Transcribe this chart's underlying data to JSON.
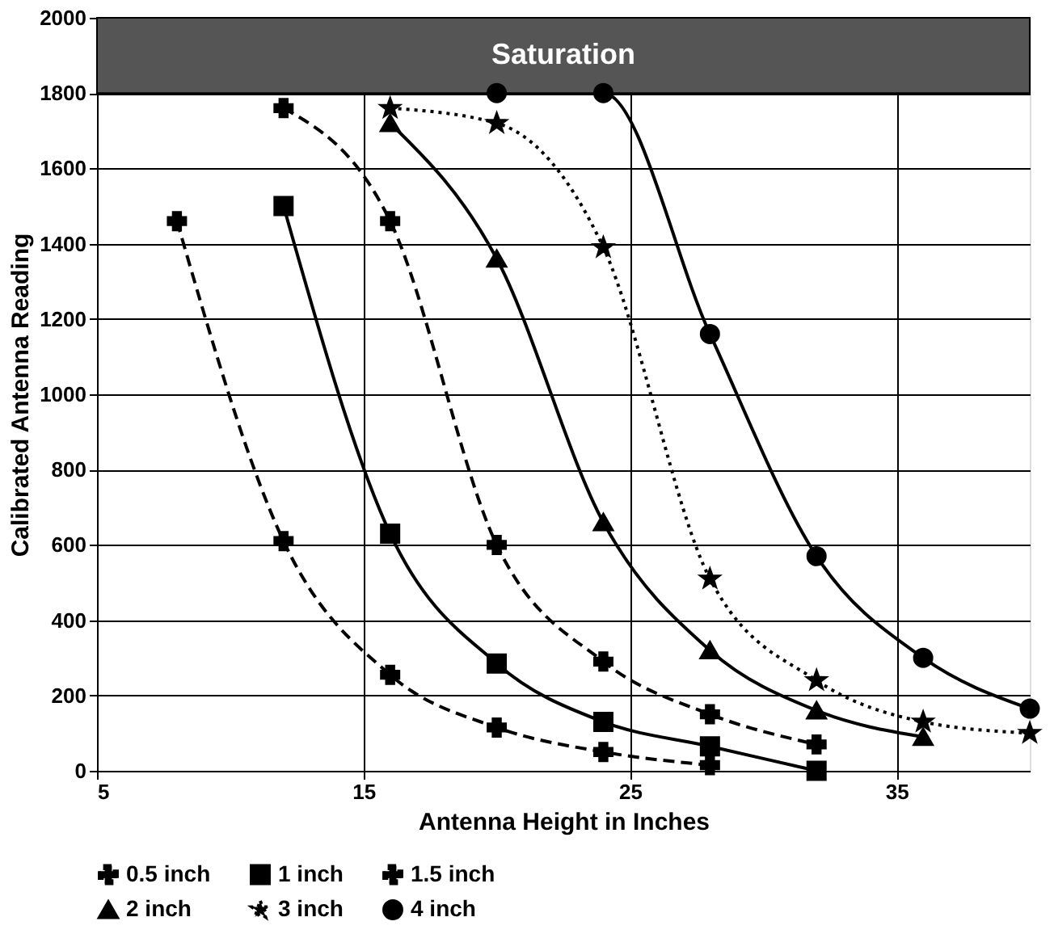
{
  "chart_data": {
    "type": "line",
    "xlabel": "Antenna Height in Inches",
    "ylabel": "Calibrated Antenna Reading",
    "xlim": [
      5,
      40
    ],
    "xticks": [
      5,
      15,
      25,
      35
    ],
    "ylim": [
      0,
      2000
    ],
    "yticks": [
      0,
      200,
      400,
      600,
      800,
      1000,
      1200,
      1400,
      1600,
      1800,
      2000
    ],
    "grid": true,
    "legend": "bottom",
    "bands": [
      {
        "axis": "y",
        "from": 1800,
        "to": 2000,
        "label": "Saturation",
        "color": "#555555"
      }
    ],
    "series": [
      {
        "name": "0.5 inch",
        "color": "#000000",
        "marker": "cross",
        "line_style": "dashed",
        "x": [
          8,
          12,
          16,
          20,
          24,
          28
        ],
        "values": [
          1460,
          610,
          255,
          115,
          50,
          15
        ]
      },
      {
        "name": "1 inch",
        "color": "#000000",
        "marker": "square",
        "line_style": "solid",
        "x": [
          12,
          16,
          20,
          24,
          28,
          32
        ],
        "values": [
          1500,
          630,
          285,
          130,
          65,
          0
        ]
      },
      {
        "name": "1.5 inch",
        "color": "#000000",
        "marker": "cross",
        "line_style": "dashed",
        "x": [
          12,
          16,
          20,
          24,
          28,
          32
        ],
        "values": [
          1760,
          1460,
          600,
          290,
          150,
          70
        ]
      },
      {
        "name": "2 inch",
        "color": "#000000",
        "marker": "triangle",
        "line_style": "solid",
        "x": [
          16,
          20,
          24,
          28,
          32,
          36
        ],
        "values": [
          1720,
          1360,
          660,
          320,
          160,
          90
        ]
      },
      {
        "name": "3 inch",
        "color": "#000000",
        "marker": "star",
        "line_style": "dotted",
        "x": [
          16,
          20,
          24,
          28,
          32,
          36,
          40
        ],
        "values": [
          1760,
          1720,
          1390,
          510,
          240,
          130,
          100
        ]
      },
      {
        "name": "4 inch",
        "color": "#000000",
        "marker": "circle",
        "line_style": "solid",
        "x": [
          20,
          24,
          28,
          32,
          36,
          40
        ],
        "values": [
          1800,
          1800,
          1160,
          570,
          300,
          165
        ]
      }
    ]
  }
}
